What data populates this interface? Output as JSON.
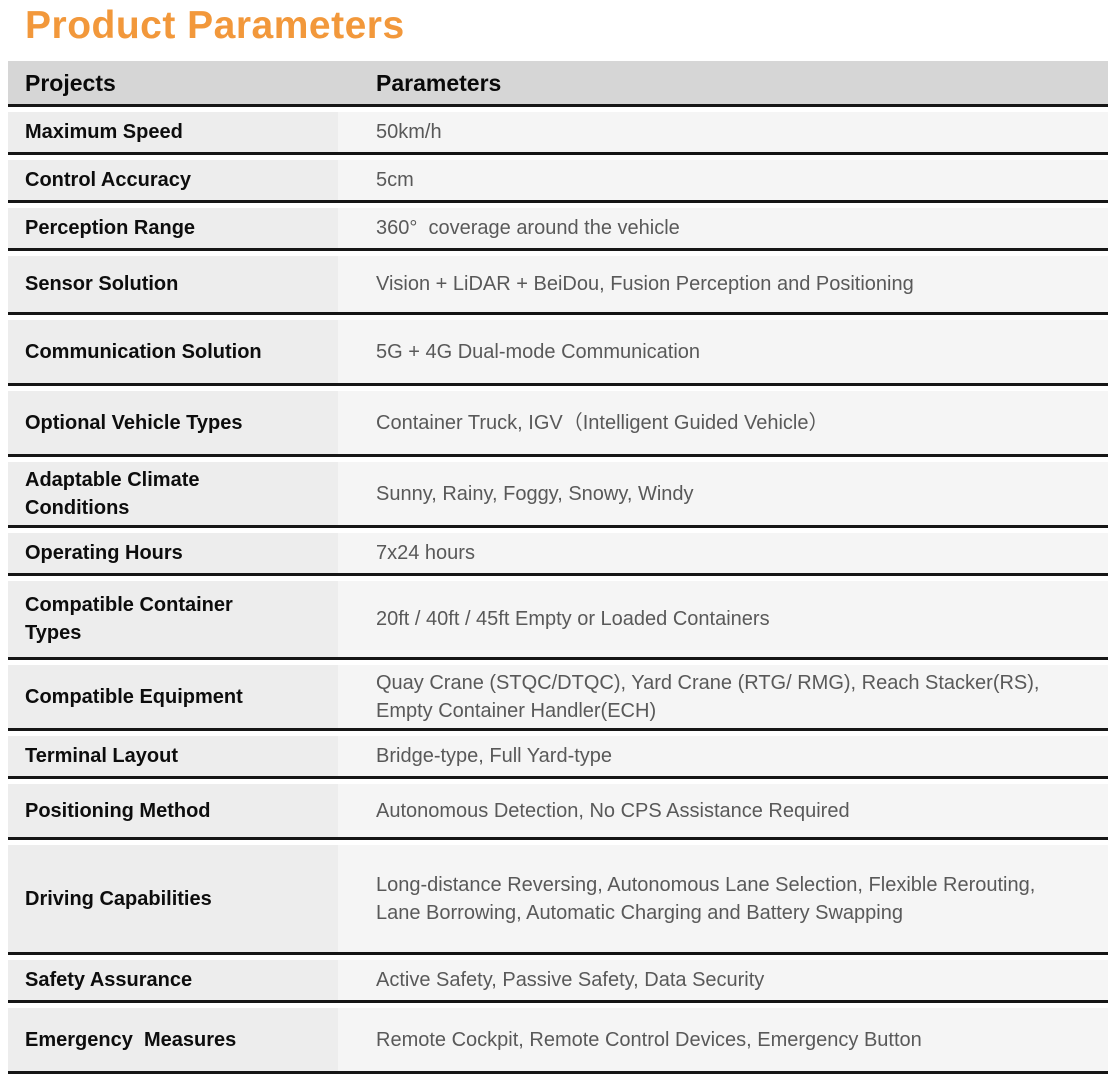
{
  "title": "Product Parameters",
  "colors": {
    "title_accent": "#F2983B",
    "header_bg": "#d6d6d6",
    "row_left_bg": "#ededed",
    "row_right_bg": "#f5f5f5",
    "divider": "#161616",
    "label_text": "#0d0d0d",
    "value_text": "#595959"
  },
  "table": {
    "headers": [
      "Projects",
      "Parameters"
    ],
    "rows": [
      {
        "project": "Maximum Speed",
        "parameter": "50km/h"
      },
      {
        "project": "Control Accuracy",
        "parameter": "5cm"
      },
      {
        "project": "Perception Range",
        "parameter": "360°  coverage around the vehicle"
      },
      {
        "project": "Sensor Solution",
        "parameter": "Vision + LiDAR + BeiDou, Fusion Perception and Positioning"
      },
      {
        "project": "Communication Solution",
        "parameter": "5G + 4G Dual-mode Communication"
      },
      {
        "project": "Optional Vehicle Types",
        "parameter": "Container Truck, IGV（Intelligent Guided Vehicle）"
      },
      {
        "project": "Adaptable Climate Conditions",
        "parameter": "Sunny, Rainy, Foggy, Snowy, Windy"
      },
      {
        "project": "Operating Hours",
        "parameter": "7x24 hours"
      },
      {
        "project": "Compatible Container Types",
        "parameter": "20ft / 40ft / 45ft Empty or Loaded Containers"
      },
      {
        "project": "Compatible Equipment",
        "parameter": "Quay Crane (STQC/DTQC), Yard Crane (RTG/ RMG), Reach Stacker(RS), Empty Container Handler(ECH)"
      },
      {
        "project": "Terminal Layout",
        "parameter": "Bridge-type, Full Yard-type"
      },
      {
        "project": "Positioning Method",
        "parameter": "Autonomous Detection, No CPS Assistance Required"
      },
      {
        "project": "Driving Capabilities",
        "parameter": "Long-distance Reversing, Autonomous Lane Selection, Flexible Rerouting, Lane Borrowing, Automatic Charging and Battery Swapping"
      },
      {
        "project": "Safety Assurance",
        "parameter": "Active Safety, Passive Safety, Data Security"
      },
      {
        "project": "Emergency  Measures",
        "parameter": "Remote Cockpit, Remote Control Devices, Emergency Button"
      }
    ]
  }
}
